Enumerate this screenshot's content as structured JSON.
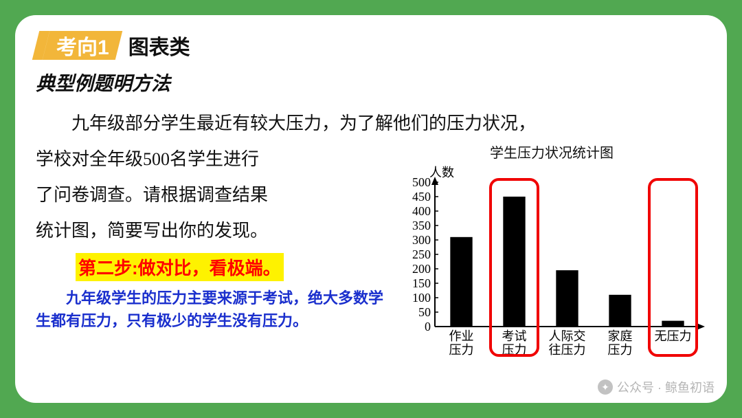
{
  "section": {
    "tag": "考向1",
    "title": "图表类"
  },
  "subtitle": "典型例题明方法",
  "body": {
    "line1": "九年级部分学生最近有较大压力，为了解他们的压力状况，",
    "line2": "学校对全年级500名学生进行",
    "line3": "了问卷调查。请根据调查结果",
    "line4": "统计图，简要写出你的发现。"
  },
  "step": "第二步:做对比，看极端。",
  "note": "　　九年级学生的压力主要来源于考试，绝大多数学生都有压力，只有极少的学生没有压力。",
  "chart": {
    "type": "bar",
    "title": "学生压力状况统计图",
    "y_label": "人数",
    "y_ticks": [
      50,
      100,
      150,
      200,
      250,
      300,
      350,
      400,
      450,
      500
    ],
    "ylim": [
      0,
      500
    ],
    "categories": [
      [
        "作业",
        "压力"
      ],
      [
        "考试",
        "压力"
      ],
      [
        "人际交",
        "往压力"
      ],
      [
        "家庭",
        "压力"
      ],
      [
        "无压力",
        ""
      ]
    ],
    "values": [
      310,
      450,
      195,
      110,
      20
    ],
    "bar_color": "#000000",
    "axis_color": "#000000",
    "bg": "#ffffff",
    "font_size": 18,
    "bar_width": 0.42,
    "highlight": [
      1,
      4
    ],
    "highlight_color": "#f00000"
  },
  "watermark": "公众号 · 鲸鱼初语"
}
